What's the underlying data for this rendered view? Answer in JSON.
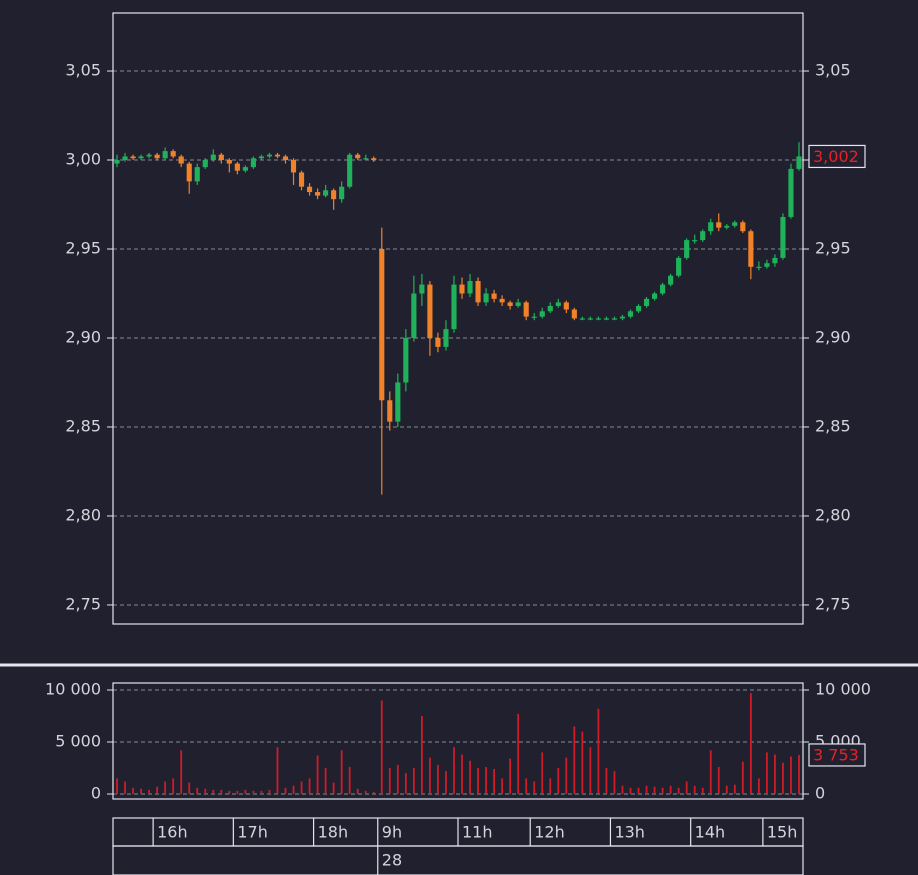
{
  "chart_data": {
    "type": "candlestick",
    "categories": [
      null,
      null,
      null,
      null,
      null,
      "16h",
      null,
      null,
      null,
      null,
      null,
      null,
      null,
      null,
      null,
      "17h",
      null,
      null,
      null,
      null,
      null,
      null,
      null,
      null,
      null,
      "18h",
      null,
      null,
      null,
      null,
      null,
      null,
      null,
      "9h",
      null,
      null,
      null,
      null,
      null,
      null,
      null,
      null,
      null,
      "11h",
      null,
      null,
      null,
      null,
      null,
      null,
      null,
      null,
      "12h",
      null,
      null,
      null,
      null,
      null,
      null,
      null,
      null,
      null,
      "13h",
      null,
      null,
      null,
      null,
      null,
      null,
      null,
      null,
      null,
      "14h",
      null,
      null,
      null,
      null,
      null,
      null,
      null,
      null,
      "15h",
      null,
      null,
      null,
      null
    ],
    "date_label": "28",
    "ohlc": [
      [
        2.998,
        3.003,
        2.996,
        3.0
      ],
      [
        3.0,
        3.004,
        2.999,
        3.002
      ],
      [
        3.002,
        3.003,
        3.0,
        3.001
      ],
      [
        3.001,
        3.003,
        3.0,
        3.002
      ],
      [
        3.002,
        3.004,
        3.001,
        3.003
      ],
      [
        3.003,
        3.004,
        3.0,
        3.001
      ],
      [
        3.001,
        3.007,
        3.0,
        3.005
      ],
      [
        3.005,
        3.006,
        3.001,
        3.002
      ],
      [
        3.002,
        3.003,
        2.996,
        2.998
      ],
      [
        2.998,
        2.999,
        2.981,
        2.988
      ],
      [
        2.988,
        2.998,
        2.986,
        2.996
      ],
      [
        2.996,
        3.001,
        2.995,
        3.0
      ],
      [
        3.0,
        3.006,
        2.999,
        3.003
      ],
      [
        3.003,
        3.004,
        2.998,
        3.0
      ],
      [
        3.0,
        3.001,
        2.993,
        2.998
      ],
      [
        2.998,
        2.999,
        2.992,
        2.994
      ],
      [
        2.994,
        2.997,
        2.993,
        2.996
      ],
      [
        2.996,
        3.002,
        2.995,
        3.001
      ],
      [
        3.001,
        3.003,
        3.0,
        3.002
      ],
      [
        3.002,
        3.004,
        3.001,
        3.003
      ],
      [
        3.003,
        3.004,
        3.001,
        3.002
      ],
      [
        3.002,
        3.003,
        2.998,
        3.0
      ],
      [
        3.0,
        3.001,
        2.986,
        2.993
      ],
      [
        2.993,
        2.994,
        2.983,
        2.985
      ],
      [
        2.985,
        2.987,
        2.98,
        2.982
      ],
      [
        2.982,
        2.984,
        2.978,
        2.98
      ],
      [
        2.98,
        2.986,
        2.979,
        2.983
      ],
      [
        2.983,
        2.984,
        2.972,
        2.978
      ],
      [
        2.978,
        2.988,
        2.976,
        2.985
      ],
      [
        2.985,
        3.004,
        2.984,
        3.003
      ],
      [
        3.003,
        3.004,
        3.0,
        3.001
      ],
      [
        3.001,
        3.003,
        3.0,
        3.001
      ],
      [
        3.001,
        3.002,
        2.999,
        3.0
      ],
      [
        2.95,
        2.962,
        2.812,
        2.865
      ],
      [
        2.865,
        2.87,
        2.848,
        2.853
      ],
      [
        2.853,
        2.88,
        2.85,
        2.875
      ],
      [
        2.875,
        2.905,
        2.87,
        2.9
      ],
      [
        2.9,
        2.935,
        2.898,
        2.925
      ],
      [
        2.925,
        2.936,
        2.918,
        2.93
      ],
      [
        2.93,
        2.932,
        2.89,
        2.9
      ],
      [
        2.9,
        2.903,
        2.892,
        2.895
      ],
      [
        2.895,
        2.91,
        2.893,
        2.905
      ],
      [
        2.905,
        2.935,
        2.903,
        2.93
      ],
      [
        2.93,
        2.934,
        2.922,
        2.925
      ],
      [
        2.925,
        2.936,
        2.923,
        2.932
      ],
      [
        2.932,
        2.934,
        2.918,
        2.92
      ],
      [
        2.92,
        2.928,
        2.918,
        2.925
      ],
      [
        2.925,
        2.927,
        2.92,
        2.922
      ],
      [
        2.922,
        2.924,
        2.918,
        2.92
      ],
      [
        2.92,
        2.921,
        2.916,
        2.918
      ],
      [
        2.918,
        2.922,
        2.917,
        2.92
      ],
      [
        2.92,
        2.921,
        2.91,
        2.912
      ],
      [
        2.912,
        2.914,
        2.91,
        2.912
      ],
      [
        2.912,
        2.917,
        2.911,
        2.915
      ],
      [
        2.915,
        2.92,
        2.914,
        2.918
      ],
      [
        2.918,
        2.922,
        2.917,
        2.92
      ],
      [
        2.92,
        2.921,
        2.914,
        2.916
      ],
      [
        2.916,
        2.917,
        2.91,
        2.911
      ],
      [
        2.911,
        2.912,
        2.91,
        2.911
      ],
      [
        2.911,
        2.912,
        2.91,
        2.911
      ],
      [
        2.911,
        2.912,
        2.91,
        2.911
      ],
      [
        2.911,
        2.912,
        2.91,
        2.911
      ],
      [
        2.911,
        2.912,
        2.91,
        2.911
      ],
      [
        2.911,
        2.913,
        2.91,
        2.912
      ],
      [
        2.912,
        2.916,
        2.911,
        2.915
      ],
      [
        2.915,
        2.919,
        2.914,
        2.918
      ],
      [
        2.918,
        2.923,
        2.917,
        2.922
      ],
      [
        2.922,
        2.926,
        2.921,
        2.925
      ],
      [
        2.925,
        2.931,
        2.924,
        2.93
      ],
      [
        2.93,
        2.936,
        2.929,
        2.935
      ],
      [
        2.935,
        2.946,
        2.934,
        2.945
      ],
      [
        2.945,
        2.956,
        2.944,
        2.955
      ],
      [
        2.955,
        2.958,
        2.953,
        2.955
      ],
      [
        2.955,
        2.961,
        2.954,
        2.96
      ],
      [
        2.96,
        2.967,
        2.958,
        2.965
      ],
      [
        2.965,
        2.97,
        2.96,
        2.962
      ],
      [
        2.962,
        2.964,
        2.961,
        2.963
      ],
      [
        2.963,
        2.966,
        2.962,
        2.965
      ],
      [
        2.965,
        2.966,
        2.959,
        2.96
      ],
      [
        2.96,
        2.961,
        2.933,
        2.94
      ],
      [
        2.94,
        2.943,
        2.938,
        2.94
      ],
      [
        2.94,
        2.944,
        2.939,
        2.942
      ],
      [
        2.942,
        2.947,
        2.94,
        2.945
      ],
      [
        2.945,
        2.97,
        2.944,
        2.968
      ],
      [
        2.968,
        2.998,
        2.967,
        2.995
      ],
      [
        2.995,
        3.01,
        2.994,
        3.002
      ]
    ],
    "up_color": "#1fb25a",
    "down_color": "#f0822a",
    "ylim": [
      2.7393,
      3.0826
    ],
    "yticks": [
      {
        "value": 2.75,
        "label": "2,75"
      },
      {
        "value": 2.8,
        "label": "2,80"
      },
      {
        "value": 2.85,
        "label": "2,85"
      },
      {
        "value": 2.9,
        "label": "2,90"
      },
      {
        "value": 2.95,
        "label": "2,95"
      },
      {
        "value": 3.0,
        "label": "3,00"
      },
      {
        "value": 3.05,
        "label": "3,05"
      }
    ],
    "grid": true,
    "last_label": {
      "value": 3.002,
      "label": "3,002"
    },
    "volume": {
      "values": [
        1500,
        1200,
        600,
        500,
        400,
        700,
        1200,
        1500,
        4200,
        1100,
        600,
        500,
        400,
        400,
        300,
        300,
        400,
        300,
        300,
        400,
        4500,
        600,
        800,
        1200,
        1500,
        3700,
        2500,
        1100,
        4200,
        2600,
        500,
        300,
        200,
        9000,
        2500,
        2800,
        2000,
        2500,
        7500,
        3500,
        2800,
        2200,
        4500,
        3800,
        3200,
        2500,
        2600,
        2400,
        1500,
        3400,
        7700,
        1500,
        1200,
        4000,
        1500,
        2500,
        3500,
        6500,
        6000,
        4500,
        8200,
        2500,
        2200,
        800,
        600,
        600,
        800,
        700,
        600,
        800,
        600,
        1200,
        800,
        600,
        4200,
        2600,
        800,
        900,
        3100,
        9700,
        1500,
        4000,
        3800,
        3000,
        3600,
        3753
      ],
      "color": "#d01c28",
      "ylim": [
        -481,
        10673
      ],
      "yticks": [
        0,
        {
          "value": 5000,
          "label": "5 000"
        },
        {
          "value": 10000,
          "label": "10 000"
        }
      ],
      "last_label": {
        "value": 3753,
        "label": "3 753"
      }
    }
  }
}
